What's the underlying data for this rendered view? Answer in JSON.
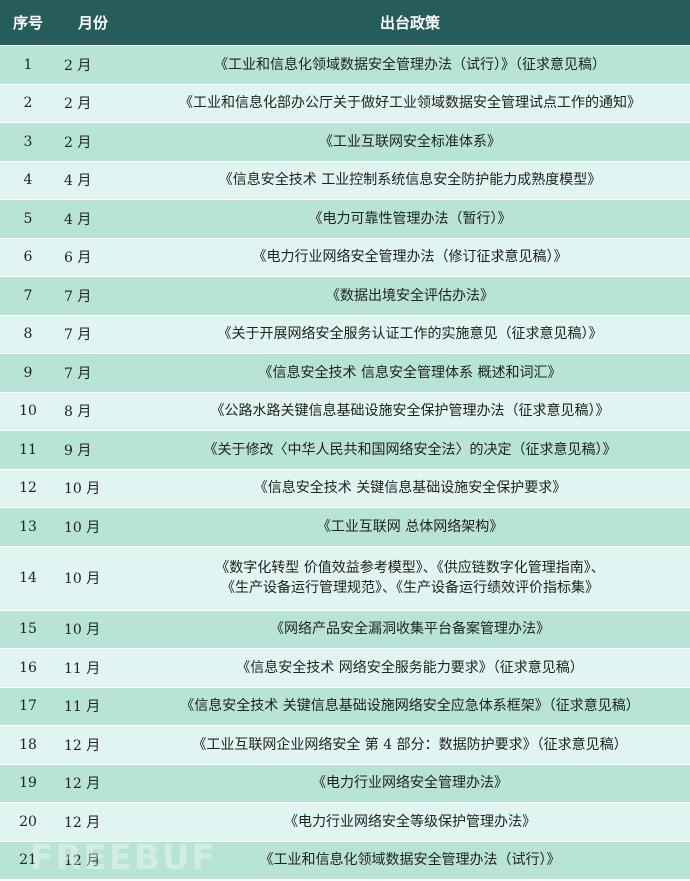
{
  "header": {
    "index": "序号",
    "month": "月份",
    "policy": "出台政策"
  },
  "rows": [
    {
      "index": "1",
      "month": "2 月",
      "policy": "《工业和信息化领域数据安全管理办法（试行）》（征求意见稿）"
    },
    {
      "index": "2",
      "month": "2 月",
      "policy": "《工业和信息化部办公厅关于做好工业领域数据安全管理试点工作的通知》"
    },
    {
      "index": "3",
      "month": "2 月",
      "policy": "《工业互联网安全标准体系》"
    },
    {
      "index": "4",
      "month": "4 月",
      "policy": "《信息安全技术 工业控制系统信息安全防护能力成熟度模型》"
    },
    {
      "index": "5",
      "month": "4 月",
      "policy": "《电力可靠性管理办法（暂行）》"
    },
    {
      "index": "6",
      "month": "6 月",
      "policy": "《电力行业网络安全管理办法（修订征求意见稿）》"
    },
    {
      "index": "7",
      "month": "7 月",
      "policy": "《数据出境安全评估办法》"
    },
    {
      "index": "8",
      "month": "7 月",
      "policy": "《关于开展网络安全服务认证工作的实施意见（征求意见稿）》"
    },
    {
      "index": "9",
      "month": "7 月",
      "policy": "《信息安全技术 信息安全管理体系 概述和词汇》"
    },
    {
      "index": "10",
      "month": "8 月",
      "policy": "《公路水路关键信息基础设施安全保护管理办法（征求意见稿）》"
    },
    {
      "index": "11",
      "month": "9 月",
      "policy": "《关于修改〈中华人民共和国网络安全法〉的决定（征求意见稿）》"
    },
    {
      "index": "12",
      "month": "10 月",
      "policy": "《信息安全技术 关键信息基础设施安全保护要求》"
    },
    {
      "index": "13",
      "month": "10 月",
      "policy": "《工业互联网 总体网络架构》"
    },
    {
      "index": "14",
      "month": "10 月",
      "policy": "《数字化转型 价值效益参考模型》、《供应链数字化管理指南》、",
      "policy_line2": "《生产设备运行管理规范》、《生产设备运行绩效评价指标集》"
    },
    {
      "index": "15",
      "month": "10 月",
      "policy": "《网络产品安全漏洞收集平台备案管理办法》"
    },
    {
      "index": "16",
      "month": "11 月",
      "policy": "《信息安全技术 网络安全服务能力要求》（征求意见稿）"
    },
    {
      "index": "17",
      "month": "11 月",
      "policy": "《信息安全技术 关键信息基础设施网络安全应急体系框架》（征求意见稿）"
    },
    {
      "index": "18",
      "month": "12 月",
      "policy": "《工业互联网企业网络安全 第 4 部分：数据防护要求》（征求意见稿）"
    },
    {
      "index": "19",
      "month": "12 月",
      "policy": "《电力行业网络安全管理办法》"
    },
    {
      "index": "20",
      "month": "12 月",
      "policy": "《电力行业网络安全等级保护管理办法》"
    },
    {
      "index": "21",
      "month": "12 月",
      "policy": "《工业和信息化领域数据安全管理办法（试行）》"
    }
  ],
  "watermark": "FREEBUF",
  "colors": {
    "header_bg": "#265c5a",
    "row_odd": "#b8e4d6",
    "row_even": "#e0f4f2"
  }
}
